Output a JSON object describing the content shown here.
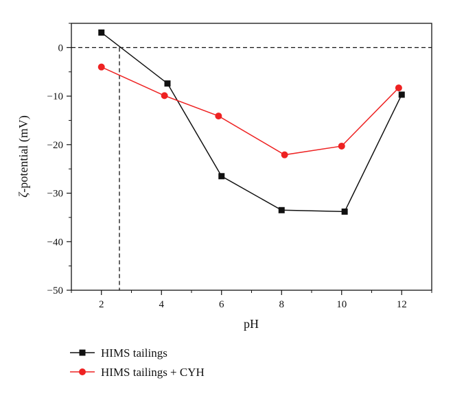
{
  "chart_data": {
    "type": "line",
    "xlabel": "pH",
    "ylabel_greek": "ζ",
    "ylabel_rest": "-potential (mV)",
    "xlim": [
      1.0,
      13.0
    ],
    "ylim": [
      -50,
      5
    ],
    "xticks": [
      2,
      4,
      6,
      8,
      10,
      12
    ],
    "yticks": [
      0,
      -10,
      -20,
      -30,
      -40,
      -50
    ],
    "xtick_labels": [
      "2",
      "4",
      "6",
      "8",
      "10",
      "12"
    ],
    "ytick_labels": [
      "0",
      "−10",
      "−20",
      "−30",
      "−40",
      "−50"
    ],
    "reference_lines": {
      "y": 0,
      "x": 2.6
    },
    "legend_position": "bottom-left, below plot",
    "series": [
      {
        "name": "HIMS tailings",
        "color": "#111111",
        "marker": "square",
        "x": [
          2.0,
          4.2,
          6.0,
          8.0,
          10.1,
          12.0
        ],
        "y": [
          3.1,
          -7.4,
          -26.5,
          -33.5,
          -33.8,
          -9.7
        ]
      },
      {
        "name": "HIMS tailings + CYH",
        "color": "#ee2222",
        "marker": "circle",
        "x": [
          2.0,
          4.1,
          5.9,
          8.1,
          10.0,
          11.9
        ],
        "y": [
          -4.0,
          -9.9,
          -14.1,
          -22.1,
          -20.3,
          -8.3
        ]
      }
    ]
  }
}
